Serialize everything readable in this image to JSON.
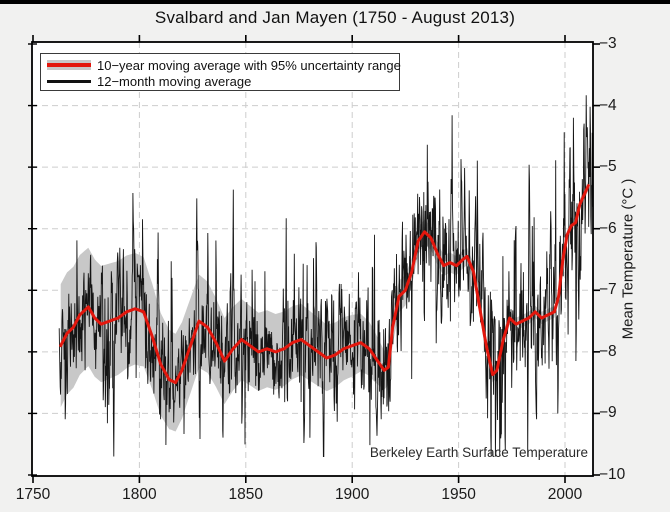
{
  "page": {
    "title": "Svalbard and Jan Mayen (1750 - August 2013)",
    "watermark": "Berkeley Earth Surface Temperature"
  },
  "legend": {
    "entry1": "10−year moving average with 95% uncertainty range",
    "entry2": "12−month moving average"
  },
  "axes": {
    "ylabel": "Mean Temperature (°C )",
    "x_tick_labels": [
      "1750",
      "1800",
      "1850",
      "1900",
      "1950",
      "2000"
    ],
    "y_tick_labels": [
      "−3",
      "−4",
      "−5",
      "−6",
      "−7",
      "−8",
      "−9",
      "−10"
    ]
  },
  "colors": {
    "red_line": "#e3170d",
    "black_line": "#151515",
    "band_gray": "#c8c8c8",
    "grid_gray": "#cdcdcd",
    "plot_bg": "#ffffff",
    "outer_bg": "#f1f1f0",
    "axis_black": "#000000"
  },
  "chart_data": {
    "type": "line",
    "title": "Svalbard and Jan Mayen (1750 - August 2013)",
    "xlabel": "",
    "ylabel": "Mean Temperature (°C )",
    "xlim": [
      1745.8,
      2017.2
    ],
    "ylim": [
      -10,
      -3
    ],
    "x_ticks": [
      1750,
      1800,
      1850,
      1900,
      1950,
      2000
    ],
    "y_ticks": [
      -3,
      -4,
      -5,
      -6,
      -7,
      -8,
      -9,
      -10
    ],
    "grid": "dashed, vertical at 1800-2000 step 50, horizontal at -4..-9",
    "legend_position": "top-left inside plot",
    "annotation": "Berkeley Earth Surface Temperature",
    "series": [
      {
        "name": "10-year moving average",
        "style": "smooth red line, 3px",
        "points": [
          [
            1763,
            -7.9
          ],
          [
            1766,
            -7.7
          ],
          [
            1769,
            -7.6
          ],
          [
            1772,
            -7.4
          ],
          [
            1776,
            -7.27
          ],
          [
            1779,
            -7.45
          ],
          [
            1782,
            -7.55
          ],
          [
            1786,
            -7.5
          ],
          [
            1790,
            -7.45
          ],
          [
            1794,
            -7.35
          ],
          [
            1798,
            -7.3
          ],
          [
            1802,
            -7.35
          ],
          [
            1806,
            -7.75
          ],
          [
            1810,
            -8.2
          ],
          [
            1814,
            -8.45
          ],
          [
            1817,
            -8.5
          ],
          [
            1820,
            -8.3
          ],
          [
            1824,
            -7.9
          ],
          [
            1828,
            -7.5
          ],
          [
            1832,
            -7.6
          ],
          [
            1836,
            -7.85
          ],
          [
            1840,
            -8.15
          ],
          [
            1844,
            -7.95
          ],
          [
            1848,
            -7.8
          ],
          [
            1852,
            -7.9
          ],
          [
            1856,
            -8.0
          ],
          [
            1860,
            -7.95
          ],
          [
            1864,
            -8.0
          ],
          [
            1868,
            -7.95
          ],
          [
            1872,
            -7.85
          ],
          [
            1876,
            -7.8
          ],
          [
            1880,
            -7.9
          ],
          [
            1884,
            -8.0
          ],
          [
            1888,
            -8.1
          ],
          [
            1892,
            -8.05
          ],
          [
            1896,
            -7.95
          ],
          [
            1900,
            -7.9
          ],
          [
            1904,
            -7.85
          ],
          [
            1908,
            -7.95
          ],
          [
            1912,
            -8.15
          ],
          [
            1915,
            -8.3
          ],
          [
            1917,
            -8.25
          ],
          [
            1919,
            -7.6
          ],
          [
            1922,
            -7.1
          ],
          [
            1925,
            -7.0
          ],
          [
            1928,
            -6.7
          ],
          [
            1931,
            -6.2
          ],
          [
            1934,
            -6.05
          ],
          [
            1937,
            -6.15
          ],
          [
            1940,
            -6.4
          ],
          [
            1943,
            -6.6
          ],
          [
            1946,
            -6.55
          ],
          [
            1949,
            -6.6
          ],
          [
            1952,
            -6.5
          ],
          [
            1954,
            -6.45
          ],
          [
            1957,
            -6.7
          ],
          [
            1960,
            -7.3
          ],
          [
            1963,
            -7.9
          ],
          [
            1966,
            -8.37
          ],
          [
            1968,
            -8.3
          ],
          [
            1971,
            -7.8
          ],
          [
            1974,
            -7.45
          ],
          [
            1977,
            -7.55
          ],
          [
            1980,
            -7.5
          ],
          [
            1983,
            -7.45
          ],
          [
            1986,
            -7.35
          ],
          [
            1989,
            -7.45
          ],
          [
            1992,
            -7.4
          ],
          [
            1995,
            -7.35
          ],
          [
            1997,
            -7.1
          ],
          [
            1999,
            -6.5
          ],
          [
            2001,
            -6.1
          ],
          [
            2003,
            -5.95
          ],
          [
            2005,
            -5.9
          ],
          [
            2007,
            -5.6
          ],
          [
            2009,
            -5.45
          ],
          [
            2011,
            -5.3
          ]
        ]
      },
      {
        "name": "95% uncertainty range",
        "style": "gray band centered on 10-year average",
        "half_width_points": [
          [
            1763,
            1.0
          ],
          [
            1780,
            0.95
          ],
          [
            1800,
            0.9
          ],
          [
            1815,
            0.8
          ],
          [
            1830,
            0.75
          ],
          [
            1850,
            0.65
          ],
          [
            1870,
            0.6
          ],
          [
            1885,
            0.55
          ],
          [
            1900,
            0.5
          ],
          [
            1910,
            0.42
          ],
          [
            1916,
            0.3
          ],
          [
            1922,
            0.26
          ],
          [
            1930,
            0.22
          ],
          [
            1940,
            0.18
          ],
          [
            1950,
            0.15
          ],
          [
            1960,
            0.13
          ],
          [
            1970,
            0.12
          ],
          [
            1980,
            0.1
          ],
          [
            1990,
            0.1
          ],
          [
            2000,
            0.09
          ],
          [
            2011,
            0.08
          ]
        ]
      },
      {
        "name": "12-month moving average",
        "style": "thin jagged black line around the 10-year average",
        "x_range": [
          1762.3,
          2013.6
        ],
        "extremes": {
          "max": -3.35,
          "min": -9.6
        },
        "synthesis": {
          "note": "monthly detail not resolvable at pixel level; rendered as 10-year curve + AR(1) noise",
          "seed": 1337,
          "ar_coefficient": 0.52,
          "points_per_year": 6,
          "sigma_anchors": [
            [
              1762,
              0.42
            ],
            [
              1800,
              0.44
            ],
            [
              1850,
              0.4
            ],
            [
              1900,
              0.42
            ],
            [
              1913,
              0.55
            ],
            [
              1925,
              0.52
            ],
            [
              1945,
              0.58
            ],
            [
              1965,
              0.62
            ],
            [
              1985,
              0.55
            ],
            [
              2000,
              0.6
            ],
            [
              2013,
              0.68
            ]
          ]
        }
      }
    ]
  }
}
